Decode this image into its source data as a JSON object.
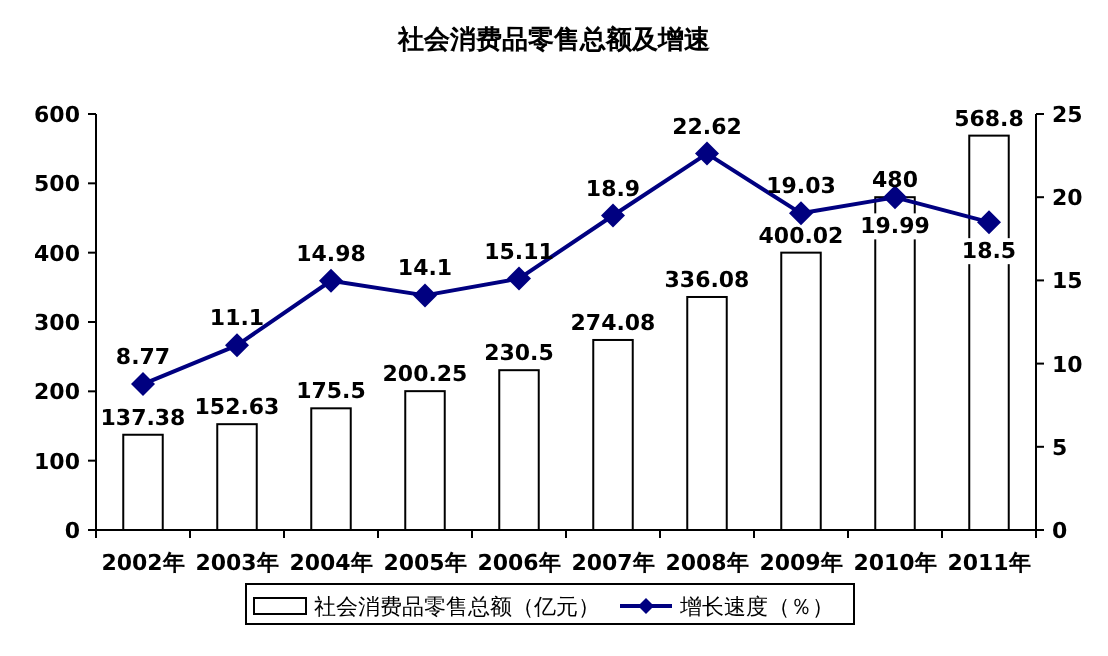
{
  "chart_data": {
    "type": "bar",
    "title": "社会消费品零售总额及增速",
    "categories": [
      "2002年",
      "2003年",
      "2004年",
      "2005年",
      "2006年",
      "2007年",
      "2008年",
      "2009年",
      "2010年",
      "2011年"
    ],
    "series": [
      {
        "name": "社会消费品零售总额（亿元）",
        "color": "#ffffff",
        "values": [
          137.38,
          152.63,
          175.5,
          200.25,
          230.5,
          274.08,
          336.08,
          400.02,
          480,
          568.8
        ]
      },
      {
        "name": "增长速度（％）",
        "type": "line",
        "axis": "y2",
        "color": "#000080",
        "values": [
          8.77,
          11.1,
          14.98,
          14.1,
          15.11,
          18.9,
          22.62,
          19.03,
          19.99,
          18.5
        ]
      }
    ],
    "ylim": [
      0,
      600
    ],
    "yticks": [
      0,
      100,
      200,
      300,
      400,
      500,
      600
    ],
    "y2lim": [
      0,
      25
    ],
    "y2ticks": [
      0,
      5,
      10,
      15,
      20,
      25
    ],
    "data_labels": true,
    "legend": "bottom",
    "marker": "diamond",
    "line_style": "solid",
    "grid": false
  }
}
